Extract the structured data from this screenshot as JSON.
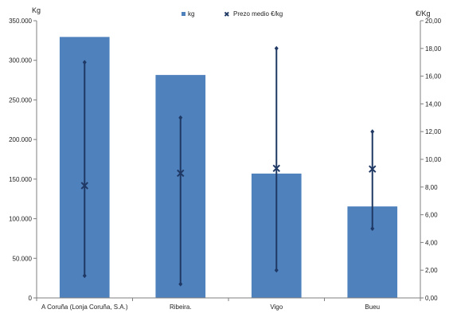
{
  "chart_data": {
    "type": "bar",
    "categories": [
      "A Coruña (Lonja Coruña, S.A.)",
      "Ribeira.",
      "Vigo",
      "Bueu"
    ],
    "series": [
      {
        "name": "kg",
        "type": "bar",
        "axis": "left",
        "values": [
          329500,
          281500,
          157000,
          115500
        ]
      },
      {
        "name": "Prezo medio €/kg",
        "type": "point-range",
        "axis": "right",
        "values": [
          8.1,
          9.0,
          9.35,
          9.3
        ],
        "min": [
          1.6,
          1.0,
          2.0,
          5.0
        ],
        "max": [
          17.0,
          13.0,
          18.0,
          12.0
        ]
      }
    ],
    "y_left": {
      "label": "Kg",
      "range": [
        0,
        350000
      ],
      "ticks": [
        "0",
        "50.000",
        "100.000",
        "150.000",
        "200.000",
        "250.000",
        "300.000",
        "350.000"
      ]
    },
    "y_right": {
      "label": "€/Kg",
      "range": [
        0,
        20
      ],
      "ticks": [
        "0,00",
        "2,00",
        "4,00",
        "6,00",
        "8,00",
        "10,00",
        "12,00",
        "14,00",
        "16,00",
        "18,00",
        "20,00"
      ]
    },
    "legend_position": "top",
    "grid": false,
    "colors": {
      "bar": "#4f81bd",
      "line": "#1f3864",
      "axis": "#7f7f7f"
    }
  }
}
